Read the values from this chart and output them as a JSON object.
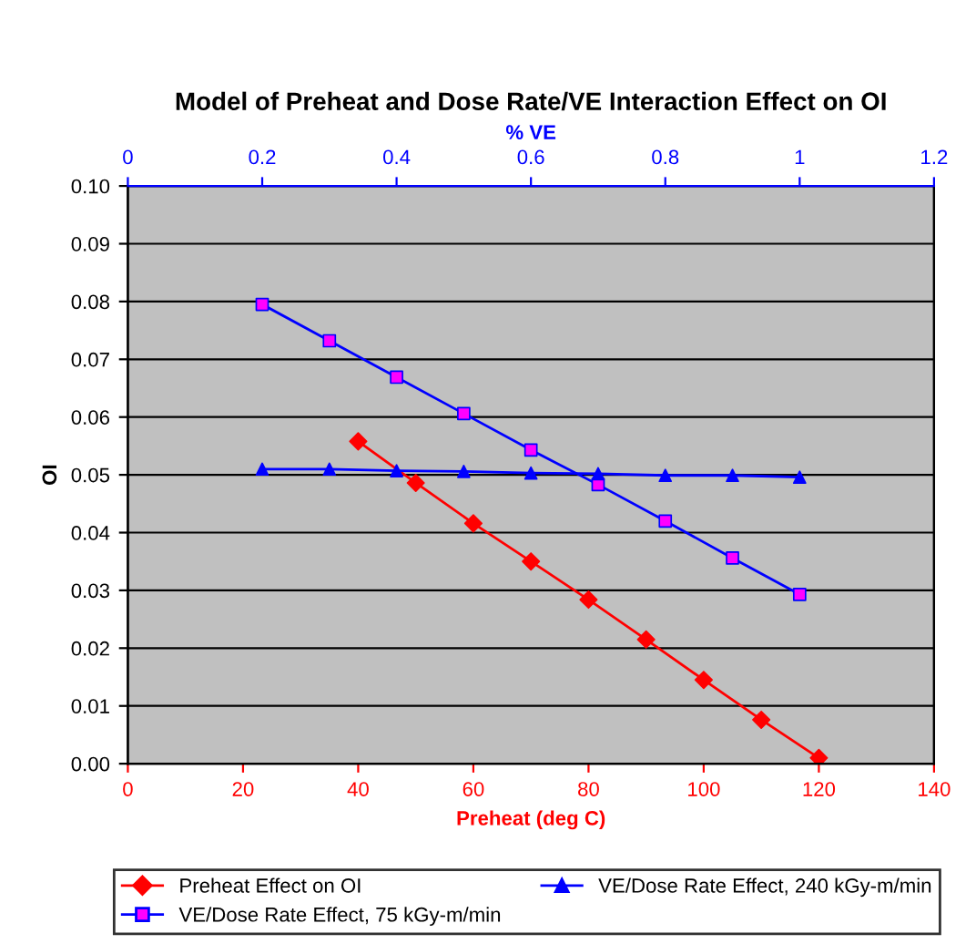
{
  "chart_data": {
    "type": "line",
    "title": "Model of Preheat and Dose Rate/VE Interaction Effect on OI",
    "xlabel": "Preheat (deg C)",
    "ylabel": "OI",
    "x2label": "% VE",
    "series": [
      {
        "name": "Preheat Effect on OI",
        "color": "#ff0000",
        "marker": "diamond",
        "x": [
          40,
          50,
          60,
          70,
          80,
          90,
          100,
          110,
          120
        ],
        "values": [
          0.0558,
          0.0486,
          0.0416,
          0.035,
          0.0284,
          0.0215,
          0.0145,
          0.0076,
          0.001
        ]
      },
      {
        "name": "VE/Dose Rate Effect, 75 kGy-m/min",
        "color": "#0000ff",
        "colors": [
          "#ff00ff",
          "#ff00ff",
          "#ff00ff",
          "#ff00ff",
          "#ff00ff",
          "#ff00ff",
          "#ff00ff",
          "#ff00ff",
          "#ff00ff"
        ],
        "marker": "square",
        "axis": "x2",
        "x": [
          0.2,
          0.3,
          0.4,
          0.5,
          0.6,
          0.7,
          0.8,
          0.9,
          1.0
        ],
        "values": [
          0.0795,
          0.0732,
          0.0669,
          0.0606,
          0.0543,
          0.0483,
          0.042,
          0.0356,
          0.0293
        ]
      },
      {
        "name": "VE/Dose Rate Effect, 240 kGy-m/min",
        "color": "#0000ff",
        "marker": "triangle",
        "axis": "x2",
        "x": [
          0.2,
          0.3,
          0.4,
          0.5,
          0.6,
          0.7,
          0.8,
          0.9,
          1.0
        ],
        "values": [
          0.051,
          0.051,
          0.0507,
          0.0506,
          0.0503,
          0.0502,
          0.0499,
          0.0499,
          0.0496
        ]
      }
    ],
    "xlim": [
      0,
      140
    ],
    "xticks": [
      0,
      20,
      40,
      60,
      80,
      100,
      120,
      140
    ],
    "x2lim": [
      0,
      1.2
    ],
    "x2ticks": [
      0,
      0.2,
      0.4,
      0.6,
      0.8,
      1,
      1.2
    ],
    "ylim": [
      0,
      0.1
    ],
    "yticks": [
      {
        "value": 0,
        "label": "0.00"
      },
      {
        "value": 0.01,
        "label": "0.01"
      },
      {
        "value": 0.02,
        "label": "0.02"
      },
      {
        "value": 0.03,
        "label": "0.03"
      },
      {
        "value": 0.04,
        "label": "0.04"
      },
      {
        "value": 0.05,
        "label": "0.05"
      },
      {
        "value": 0.06,
        "label": "0.06"
      },
      {
        "value": 0.07,
        "label": "0.07"
      },
      {
        "value": 0.08,
        "label": "0.08"
      },
      {
        "value": 0.09,
        "label": "0.09"
      },
      {
        "value": 0.1,
        "label": "0.10"
      }
    ],
    "grid": "y",
    "legend": "bottom",
    "line_style": "solid"
  }
}
